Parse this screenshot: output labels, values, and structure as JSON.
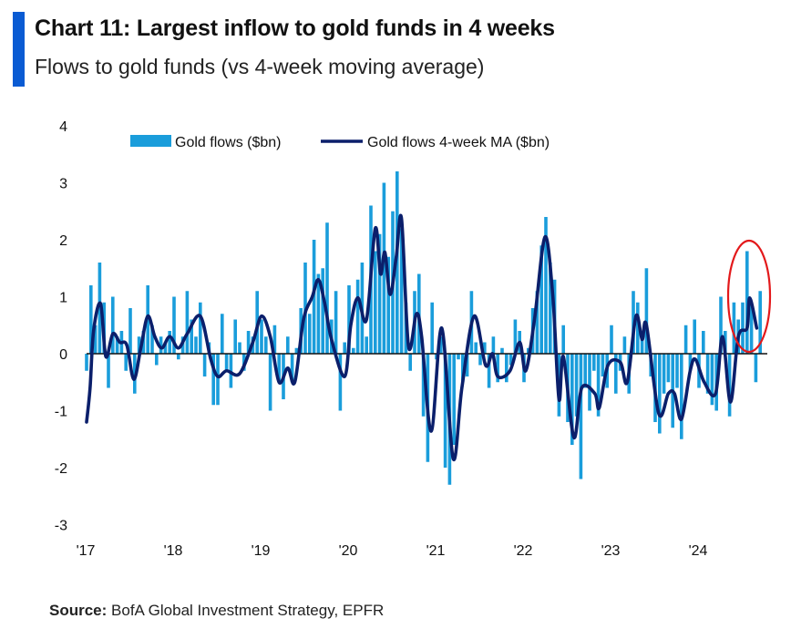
{
  "header": {
    "title": "Chart 11: Largest inflow to gold funds in 4 weeks",
    "subtitle": "Flows to gold funds (vs 4-week moving average)"
  },
  "footer": {
    "source_label": "Source:",
    "source_text": " BofA Global Investment Strategy, EPFR"
  },
  "colors": {
    "accent_bar": "#0a5bd3",
    "flows": "#1a9ddb",
    "ma": "#0b1f6b",
    "highlight": "#e3191b"
  },
  "chart_data": {
    "type": "bar",
    "title": "",
    "xlabel": "",
    "ylabel": "",
    "ylim": [
      -3,
      4
    ],
    "xlim": [
      2017,
      2024.75
    ],
    "grid": false,
    "legend_position": "top",
    "y_ticks": [
      "4",
      "3",
      "2",
      "1",
      "0",
      "-1",
      "-2",
      "-3"
    ],
    "x_ticks": [
      "'17",
      "'18",
      "'19",
      "'20",
      "'21",
      "'22",
      "'23",
      "'24"
    ],
    "annotation": "red ellipse around latest 2024 inflows",
    "series": [
      {
        "name": "Gold flows ($bn)",
        "type": "bar",
        "points": [
          [
            2017.0,
            -0.3
          ],
          [
            2017.05,
            1.2
          ],
          [
            2017.1,
            0.5
          ],
          [
            2017.15,
            1.6
          ],
          [
            2017.2,
            0.9
          ],
          [
            2017.25,
            -0.6
          ],
          [
            2017.3,
            1.0
          ],
          [
            2017.35,
            0.3
          ],
          [
            2017.4,
            0.4
          ],
          [
            2017.45,
            -0.3
          ],
          [
            2017.5,
            0.8
          ],
          [
            2017.55,
            -0.7
          ],
          [
            2017.6,
            0.3
          ],
          [
            2017.65,
            0.4
          ],
          [
            2017.7,
            1.2
          ],
          [
            2017.75,
            0.5
          ],
          [
            2017.8,
            -0.2
          ],
          [
            2017.85,
            0.3
          ],
          [
            2017.9,
            0.2
          ],
          [
            2017.95,
            0.4
          ],
          [
            2018.0,
            1.0
          ],
          [
            2018.05,
            -0.1
          ],
          [
            2018.1,
            0.3
          ],
          [
            2018.15,
            1.1
          ],
          [
            2018.2,
            0.6
          ],
          [
            2018.25,
            0.3
          ],
          [
            2018.3,
            0.9
          ],
          [
            2018.35,
            -0.4
          ],
          [
            2018.4,
            0.2
          ],
          [
            2018.45,
            -0.9
          ],
          [
            2018.5,
            -0.9
          ],
          [
            2018.55,
            0.7
          ],
          [
            2018.6,
            -0.3
          ],
          [
            2018.65,
            -0.6
          ],
          [
            2018.7,
            0.6
          ],
          [
            2018.75,
            0.2
          ],
          [
            2018.8,
            -0.3
          ],
          [
            2018.85,
            0.4
          ],
          [
            2018.9,
            0.3
          ],
          [
            2018.95,
            1.1
          ],
          [
            2019.0,
            0.6
          ],
          [
            2019.05,
            0.3
          ],
          [
            2019.1,
            -1.0
          ],
          [
            2019.15,
            0.5
          ],
          [
            2019.2,
            -0.5
          ],
          [
            2019.25,
            -0.8
          ],
          [
            2019.3,
            0.3
          ],
          [
            2019.35,
            -0.5
          ],
          [
            2019.4,
            0.1
          ],
          [
            2019.45,
            0.8
          ],
          [
            2019.5,
            1.6
          ],
          [
            2019.55,
            0.7
          ],
          [
            2019.6,
            2.0
          ],
          [
            2019.65,
            1.4
          ],
          [
            2019.7,
            1.5
          ],
          [
            2019.75,
            2.3
          ],
          [
            2019.8,
            0.6
          ],
          [
            2019.85,
            1.1
          ],
          [
            2019.9,
            -1.0
          ],
          [
            2019.95,
            0.2
          ],
          [
            2020.0,
            1.2
          ],
          [
            2020.05,
            0.1
          ],
          [
            2020.1,
            1.3
          ],
          [
            2020.15,
            1.6
          ],
          [
            2020.2,
            0.3
          ],
          [
            2020.25,
            2.6
          ],
          [
            2020.3,
            1.8
          ],
          [
            2020.35,
            2.1
          ],
          [
            2020.4,
            3.0
          ],
          [
            2020.45,
            1.7
          ],
          [
            2020.5,
            2.5
          ],
          [
            2020.55,
            3.2
          ],
          [
            2020.6,
            2.2
          ],
          [
            2020.65,
            0.9
          ],
          [
            2020.7,
            -0.3
          ],
          [
            2020.75,
            1.1
          ],
          [
            2020.8,
            1.4
          ],
          [
            2020.85,
            -1.1
          ],
          [
            2020.9,
            -1.9
          ],
          [
            2020.95,
            0.9
          ],
          [
            2021.0,
            -0.1
          ],
          [
            2021.05,
            0.3
          ],
          [
            2021.1,
            -2.0
          ],
          [
            2021.15,
            -2.3
          ],
          [
            2021.2,
            -1.6
          ],
          [
            2021.25,
            -0.1
          ],
          [
            2021.3,
            -0.5
          ],
          [
            2021.35,
            -0.4
          ],
          [
            2021.4,
            1.1
          ],
          [
            2021.45,
            0.2
          ],
          [
            2021.5,
            -0.2
          ],
          [
            2021.55,
            0.2
          ],
          [
            2021.6,
            -0.6
          ],
          [
            2021.65,
            0.3
          ],
          [
            2021.7,
            -0.5
          ],
          [
            2021.75,
            0.1
          ],
          [
            2021.8,
            -0.5
          ],
          [
            2021.85,
            -0.2
          ],
          [
            2021.9,
            0.6
          ],
          [
            2021.95,
            0.4
          ],
          [
            2022.0,
            -0.5
          ],
          [
            2022.05,
            0.1
          ],
          [
            2022.1,
            0.8
          ],
          [
            2022.15,
            1.1
          ],
          [
            2022.2,
            1.9
          ],
          [
            2022.25,
            2.4
          ],
          [
            2022.3,
            1.6
          ],
          [
            2022.35,
            1.3
          ],
          [
            2022.4,
            -1.1
          ],
          [
            2022.45,
            0.5
          ],
          [
            2022.5,
            -1.2
          ],
          [
            2022.55,
            -1.6
          ],
          [
            2022.6,
            -1.1
          ],
          [
            2022.65,
            -2.2
          ],
          [
            2022.7,
            -0.6
          ],
          [
            2022.75,
            -1.0
          ],
          [
            2022.8,
            -0.3
          ],
          [
            2022.85,
            -1.1
          ],
          [
            2022.9,
            -0.4
          ],
          [
            2022.95,
            -0.6
          ],
          [
            2023.0,
            0.5
          ],
          [
            2023.05,
            -0.7
          ],
          [
            2023.1,
            -0.3
          ],
          [
            2023.15,
            0.3
          ],
          [
            2023.2,
            -0.7
          ],
          [
            2023.25,
            1.1
          ],
          [
            2023.3,
            0.9
          ],
          [
            2023.35,
            0.3
          ],
          [
            2023.4,
            1.5
          ],
          [
            2023.45,
            -0.4
          ],
          [
            2023.5,
            -1.2
          ],
          [
            2023.55,
            -1.4
          ],
          [
            2023.6,
            -0.7
          ],
          [
            2023.65,
            -0.5
          ],
          [
            2023.7,
            -1.3
          ],
          [
            2023.75,
            -0.6
          ],
          [
            2023.8,
            -1.5
          ],
          [
            2023.85,
            0.5
          ],
          [
            2023.9,
            -0.3
          ],
          [
            2023.95,
            0.6
          ],
          [
            2024.0,
            -0.6
          ],
          [
            2024.05,
            0.4
          ],
          [
            2024.1,
            -0.7
          ],
          [
            2024.15,
            -0.9
          ],
          [
            2024.2,
            -1.0
          ],
          [
            2024.25,
            1.0
          ],
          [
            2024.3,
            0.4
          ],
          [
            2024.35,
            -1.1
          ],
          [
            2024.4,
            0.9
          ],
          [
            2024.45,
            0.6
          ],
          [
            2024.5,
            0.9
          ],
          [
            2024.55,
            1.8
          ],
          [
            2024.6,
            0.9
          ],
          [
            2024.65,
            -0.5
          ],
          [
            2024.7,
            1.1
          ]
        ]
      },
      {
        "name": "Gold flows 4-week MA ($bn)",
        "type": "line",
        "points": [
          [
            2017.0,
            -1.2
          ],
          [
            2017.04,
            -0.6
          ],
          [
            2017.08,
            0.4
          ],
          [
            2017.16,
            0.88
          ],
          [
            2017.22,
            -0.05
          ],
          [
            2017.3,
            0.35
          ],
          [
            2017.38,
            0.2
          ],
          [
            2017.46,
            0.15
          ],
          [
            2017.54,
            -0.45
          ],
          [
            2017.62,
            0.1
          ],
          [
            2017.7,
            0.66
          ],
          [
            2017.78,
            0.3
          ],
          [
            2017.86,
            0.1
          ],
          [
            2017.95,
            0.3
          ],
          [
            2018.05,
            0.1
          ],
          [
            2018.15,
            0.35
          ],
          [
            2018.3,
            0.66
          ],
          [
            2018.42,
            -0.1
          ],
          [
            2018.5,
            -0.4
          ],
          [
            2018.6,
            -0.3
          ],
          [
            2018.75,
            -0.35
          ],
          [
            2018.9,
            0.2
          ],
          [
            2019.0,
            0.66
          ],
          [
            2019.1,
            0.3
          ],
          [
            2019.2,
            -0.5
          ],
          [
            2019.3,
            -0.25
          ],
          [
            2019.38,
            -0.5
          ],
          [
            2019.48,
            0.6
          ],
          [
            2019.58,
            1.0
          ],
          [
            2019.65,
            1.3
          ],
          [
            2019.72,
            0.9
          ],
          [
            2019.8,
            0.25
          ],
          [
            2019.95,
            -0.4
          ],
          [
            2020.02,
            0.5
          ],
          [
            2020.1,
            0.98
          ],
          [
            2020.2,
            0.6
          ],
          [
            2020.3,
            2.2
          ],
          [
            2020.36,
            1.4
          ],
          [
            2020.41,
            1.78
          ],
          [
            2020.47,
            1.04
          ],
          [
            2020.54,
            1.7
          ],
          [
            2020.6,
            2.37
          ],
          [
            2020.68,
            0.13
          ],
          [
            2020.77,
            0.7
          ],
          [
            2020.83,
            0.3
          ],
          [
            2020.94,
            -1.36
          ],
          [
            2021.06,
            0.45
          ],
          [
            2021.19,
            -1.84
          ],
          [
            2021.29,
            -0.6
          ],
          [
            2021.43,
            0.66
          ],
          [
            2021.56,
            -0.2
          ],
          [
            2021.64,
            0.0
          ],
          [
            2021.7,
            -0.4
          ],
          [
            2021.84,
            -0.3
          ],
          [
            2021.95,
            0.2
          ],
          [
            2022.02,
            -0.3
          ],
          [
            2022.12,
            0.6
          ],
          [
            2022.24,
            2.05
          ],
          [
            2022.33,
            1.0
          ],
          [
            2022.4,
            -0.8
          ],
          [
            2022.45,
            -0.05
          ],
          [
            2022.57,
            -1.47
          ],
          [
            2022.66,
            -0.6
          ],
          [
            2022.81,
            -0.7
          ],
          [
            2022.86,
            -0.95
          ],
          [
            2022.96,
            -0.2
          ],
          [
            2023.1,
            -0.15
          ],
          [
            2023.18,
            -0.5
          ],
          [
            2023.28,
            0.66
          ],
          [
            2023.35,
            0.25
          ],
          [
            2023.4,
            0.5
          ],
          [
            2023.54,
            -1.05
          ],
          [
            2023.65,
            -0.7
          ],
          [
            2023.72,
            -0.7
          ],
          [
            2023.8,
            -1.15
          ],
          [
            2023.9,
            -0.3
          ],
          [
            2023.96,
            -0.1
          ],
          [
            2024.06,
            -0.5
          ],
          [
            2024.19,
            -0.7
          ],
          [
            2024.27,
            0.3
          ],
          [
            2024.36,
            -0.85
          ],
          [
            2024.45,
            0.3
          ],
          [
            2024.55,
            0.45
          ],
          [
            2024.58,
            0.98
          ],
          [
            2024.66,
            0.45
          ]
        ]
      }
    ]
  }
}
